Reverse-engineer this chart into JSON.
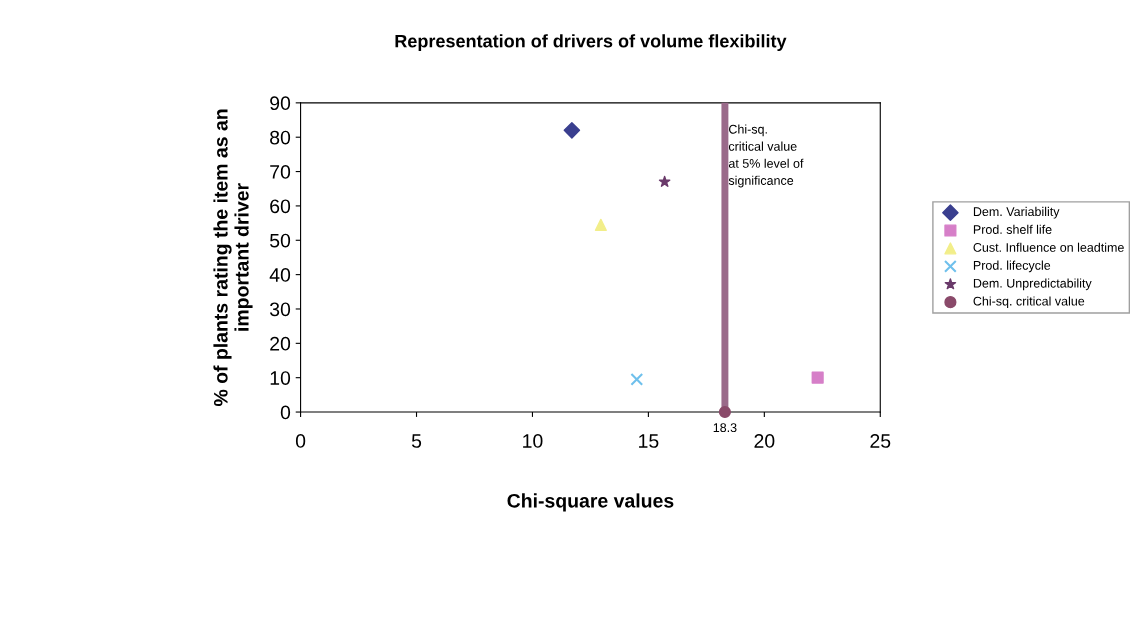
{
  "chart_data": {
    "type": "scatter",
    "title": "Representation of drivers of volume flexibility",
    "xlabel": "Chi-square values",
    "ylabel": "% of plants rating the item as an\nimportant driver",
    "xlim": [
      0,
      25
    ],
    "xticks": [
      0,
      5,
      10,
      15,
      20,
      25
    ],
    "ylim": [
      0,
      90
    ],
    "yticks": [
      0,
      10,
      20,
      30,
      40,
      50,
      60,
      70,
      80,
      90
    ],
    "grid": false,
    "legend": "right",
    "series": [
      {
        "name": "Dem. Variability",
        "color": "#3a3f8f",
        "marker": "diamond",
        "x": [
          11.7
        ],
        "values": [
          82
        ]
      },
      {
        "name": "Prod. shelf life",
        "color": "#d67fc8",
        "marker": "square",
        "x": [
          22.3
        ],
        "values": [
          10
        ]
      },
      {
        "name": "Cust. Influence on leadtime",
        "color": "#f2ee8a",
        "marker": "triangle",
        "x": [
          12.95
        ],
        "values": [
          54.5
        ]
      },
      {
        "name": "Prod. lifecycle",
        "color": "#6fc0ec",
        "marker": "cross",
        "x": [
          14.5
        ],
        "values": [
          9.5
        ]
      },
      {
        "name": "Dem. Unpredictability",
        "color": "#6a3a6a",
        "marker": "star",
        "x": [
          15.7
        ],
        "values": [
          67
        ]
      },
      {
        "name": "Chi-sq. critical value",
        "color": "#8a4a6a",
        "marker": "circle",
        "x": [
          18.3
        ],
        "values": [
          0
        ]
      }
    ],
    "ref_lines": [
      {
        "axis": "x",
        "value": 18.3,
        "label": "Chi-sq.\ncritical value\nat 5% level of\nsignificance",
        "color": "#9a6a8a"
      }
    ],
    "annotations": [
      {
        "text": "18.3",
        "x": 18.3,
        "y": 0
      }
    ]
  }
}
